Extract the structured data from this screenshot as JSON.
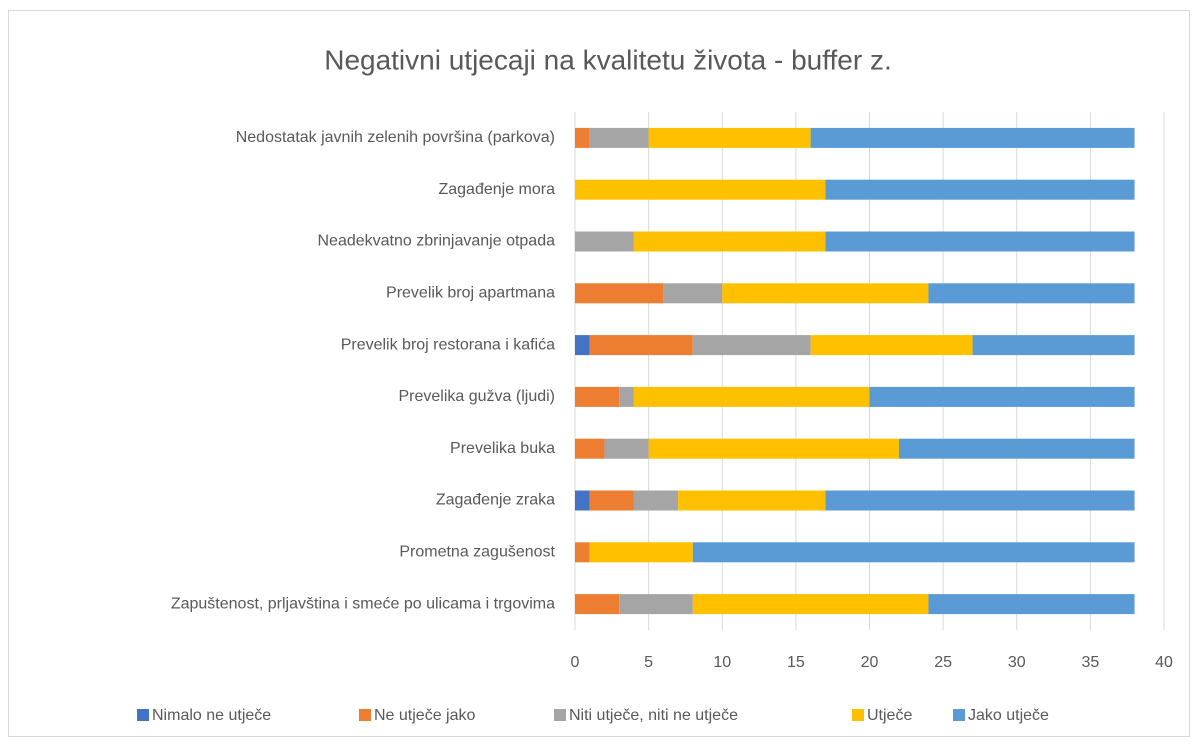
{
  "chart_data": {
    "type": "stacked_barh",
    "title": "Negativni utjecaji na kvalitetu života - buffer z.",
    "categories": [
      "Nedostatak javnih zelenih površina (parkova)",
      "Zagađenje mora",
      "Neadekvatno zbrinjavanje otpada",
      "Prevelik broj apartmana",
      "Prevelik broj restorana i kafića",
      "Prevelika gužva (ljudi)",
      "Prevelika buka",
      "Zagađenje zraka",
      "Prometna zagušenost",
      "Zapuštenost, prljavština i smeće po ulicama i trgovima"
    ],
    "series": [
      {
        "name": "Nimalo ne utječe",
        "color": "#4472c4",
        "values": [
          0,
          0,
          0,
          0,
          1,
          0,
          0,
          1,
          0,
          0
        ]
      },
      {
        "name": "Ne utječe jako",
        "color": "#ed7d31",
        "values": [
          1,
          0,
          0,
          6,
          7,
          3,
          2,
          3,
          1,
          3
        ]
      },
      {
        "name": "Niti utječe, niti ne utječe",
        "color": "#a5a5a5",
        "values": [
          4,
          0,
          4,
          4,
          8,
          1,
          3,
          3,
          0,
          5
        ]
      },
      {
        "name": "Utječe",
        "color": "#ffc000",
        "values": [
          11,
          17,
          13,
          14,
          11,
          16,
          17,
          10,
          7,
          16
        ]
      },
      {
        "name": "Jako utječe",
        "color": "#5b9bd5",
        "values": [
          22,
          21,
          21,
          14,
          11,
          18,
          16,
          21,
          30,
          14
        ]
      }
    ],
    "xlim": [
      0,
      40
    ],
    "xticks": [
      0,
      5,
      10,
      15,
      20,
      25,
      30,
      35,
      40
    ],
    "grid": true,
    "legend": "bottom"
  }
}
